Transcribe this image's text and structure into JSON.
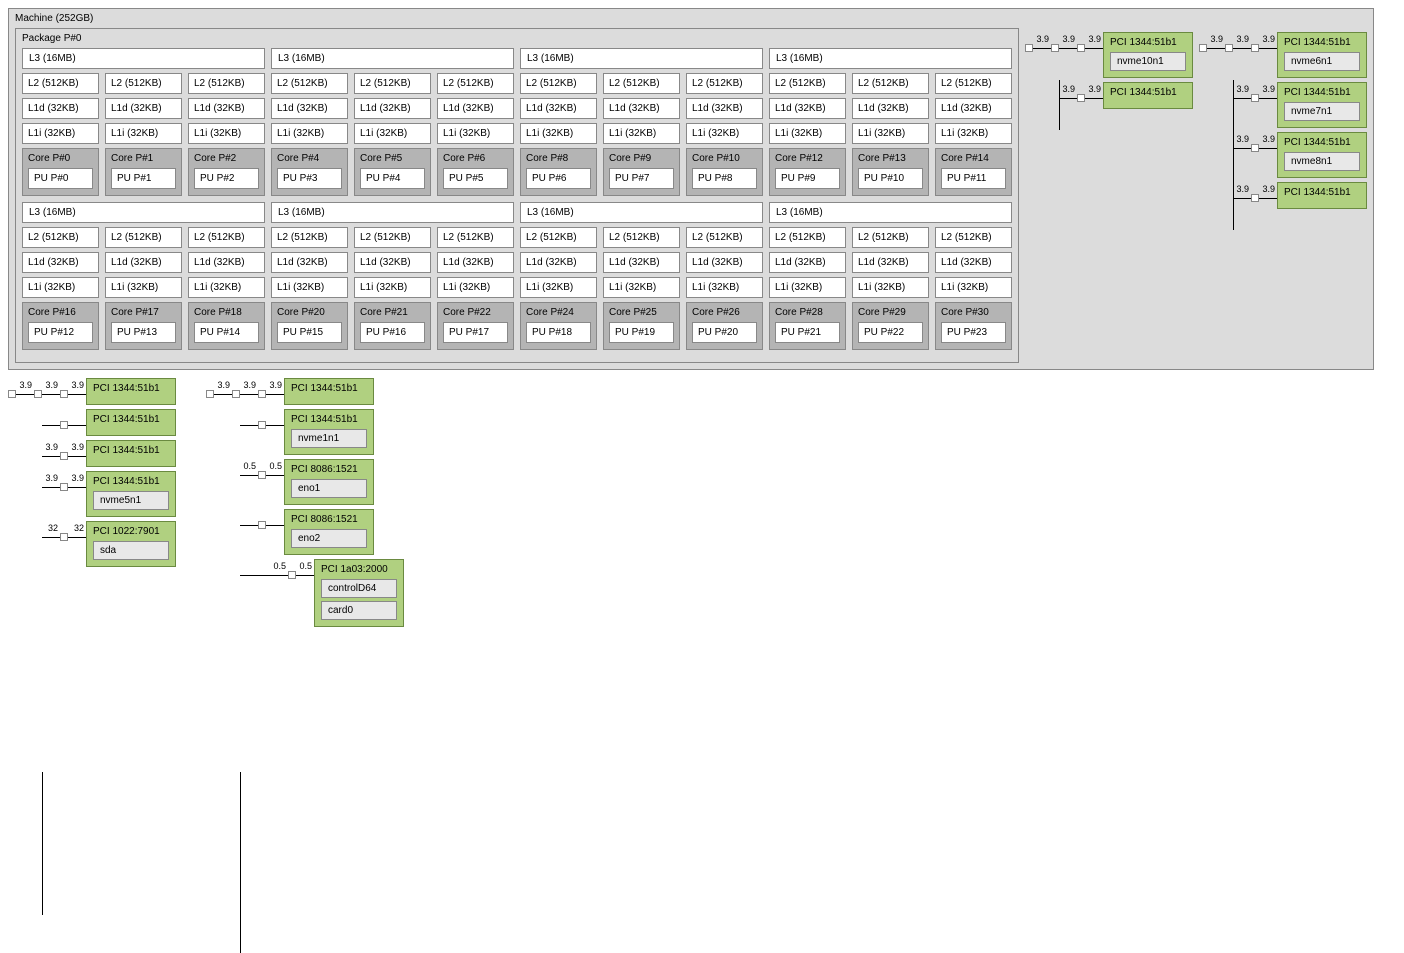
{
  "machine_label": "Machine (252GB)",
  "package_label": "Package P#0",
  "l3_label": "L3 (16MB)",
  "l2_label": "L2 (512KB)",
  "l1d_label": "L1d (32KB)",
  "l1i_label": "L1i (32KB)",
  "core_prefix": "Core P#",
  "pu_prefix": "PU P#",
  "colors": {
    "machine_bg": "#dcdcdc",
    "core_bg": "#b4b4b4",
    "pci_bg": "#b0d080",
    "dev_bg": "#e8e8e8",
    "cache_bg": "#ffffff",
    "border": "#888888"
  },
  "core_rows": [
    {
      "core_ids": [
        0,
        1,
        2,
        4,
        5,
        6,
        8,
        9,
        10,
        12,
        13,
        14
      ],
      "pu_ids": [
        0,
        1,
        2,
        3,
        4,
        5,
        6,
        7,
        8,
        9,
        10,
        11
      ]
    },
    {
      "core_ids": [
        16,
        17,
        18,
        20,
        21,
        22,
        24,
        25,
        26,
        28,
        29,
        30
      ],
      "pu_ids": [
        12,
        13,
        14,
        15,
        16,
        17,
        18,
        19,
        20,
        21,
        22,
        23
      ]
    }
  ],
  "right_trees": [
    {
      "stem_bw": "3.9",
      "items": [
        {
          "bw": "3.9",
          "pci": "PCI 1344:51b1",
          "devs": [
            "nvme10n1"
          ]
        },
        {
          "bw": "3.9",
          "pci": "PCI 1344:51b1",
          "devs": []
        }
      ]
    },
    {
      "stem_bw": "3.9",
      "items": [
        {
          "bw": "3.9",
          "pci": "PCI 1344:51b1",
          "devs": [
            "nvme6n1"
          ]
        },
        {
          "bw": "3.9",
          "pci": "PCI 1344:51b1",
          "devs": [
            "nvme7n1"
          ]
        },
        {
          "bw": "3.9",
          "pci": "PCI 1344:51b1",
          "devs": [
            "nvme8n1"
          ]
        },
        {
          "bw": "3.9",
          "pci": "PCI 1344:51b1",
          "devs": []
        }
      ]
    }
  ],
  "bottom_trees": [
    {
      "stem_bw": "3.9",
      "items": [
        {
          "bw": "3.9",
          "pci": "PCI 1344:51b1",
          "devs": []
        },
        {
          "bw": "",
          "pci": "PCI 1344:51b1",
          "devs": []
        },
        {
          "bw": "3.9",
          "pci": "PCI 1344:51b1",
          "devs": []
        },
        {
          "bw": "3.9",
          "pci": "PCI 1344:51b1",
          "devs": [
            "nvme5n1"
          ]
        },
        {
          "bw": "32",
          "pci": "PCI 1022:7901",
          "devs": [
            "sda"
          ]
        }
      ]
    },
    {
      "stem_bw": "3.9",
      "items": [
        {
          "bw": "3.9",
          "pci": "PCI 1344:51b1",
          "devs": []
        },
        {
          "bw": "",
          "pci": "PCI 1344:51b1",
          "devs": [
            "nvme1n1"
          ]
        },
        {
          "bw": "0.5",
          "pci": "PCI 8086:1521",
          "devs": [
            "eno1"
          ]
        },
        {
          "bw": "",
          "pci": "PCI 8086:1521",
          "devs": [
            "eno2"
          ]
        },
        {
          "bw": "0.5",
          "extra_indent": true,
          "pci": "PCI 1a03:2000",
          "devs": [
            "controlD64",
            "card0"
          ]
        }
      ]
    }
  ]
}
